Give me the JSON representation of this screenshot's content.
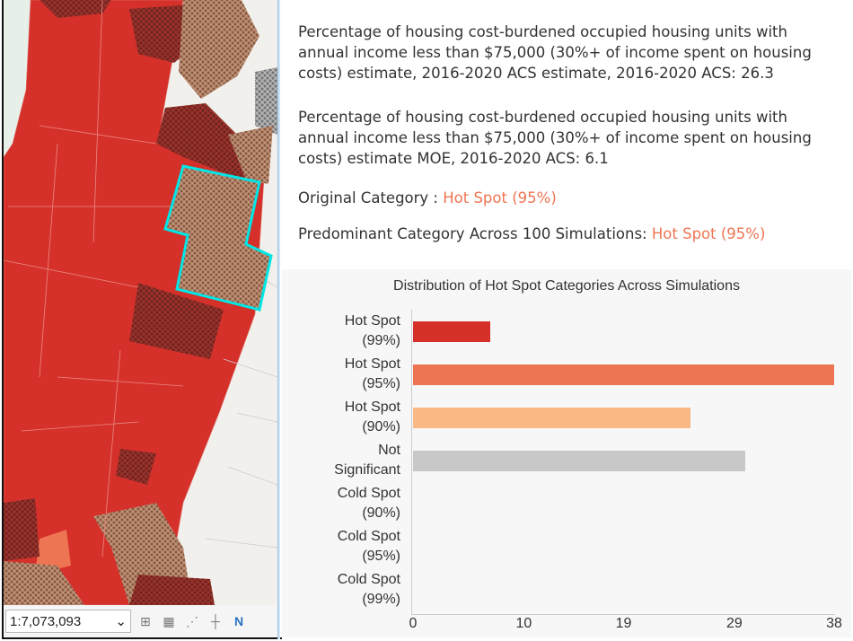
{
  "map": {
    "scale_value": "1:7,073,093"
  },
  "popup": {
    "field1": "Percentage of housing cost-burdened occupied housing units with annual income less than $75,000 (30%+ of income spent on housing costs) estimate, 2016-2020 ACS estimate, 2016-2020 ACS: 26.3",
    "field2": "Percentage of housing cost-burdened occupied housing units with annual income less than $75,000 (30%+ of income spent on housing costs) estimate MOE, 2016-2020 ACS: 6.1",
    "original_label": "Original Category : ",
    "original_value": "Hot Spot (95%)",
    "predominant_label": "Predominant Category Across 100 Simulations: ",
    "predominant_value": "Hot Spot (95%)"
  },
  "colors": {
    "hot99": "#d6302a",
    "hot95": "#ee7553",
    "hot90": "#f9b884",
    "notsig": "#c8c8c8",
    "selection": "#00e5e5"
  },
  "chart_data": {
    "type": "bar",
    "title": "Distribution of Hot Spot Categories Across Simulations",
    "categories": [
      [
        "Hot Spot",
        "(99%)"
      ],
      [
        "Hot Spot",
        "(95%)"
      ],
      [
        "Hot Spot",
        "(90%)"
      ],
      [
        "Not",
        "Significant"
      ],
      [
        "Cold Spot",
        "(90%)"
      ],
      [
        "Cold Spot",
        "(95%)"
      ],
      [
        "Cold Spot",
        "(99%)"
      ]
    ],
    "values": [
      7,
      38,
      25,
      30,
      0,
      0,
      0
    ],
    "bar_colors": [
      "#d6302a",
      "#ee7553",
      "#f9b884",
      "#c8c8c8",
      "#4575b5",
      "#849eba",
      "#c0ccbe"
    ],
    "xticks": [
      "0",
      "10",
      "19",
      "29",
      "38"
    ],
    "xlim": [
      0,
      38
    ]
  }
}
